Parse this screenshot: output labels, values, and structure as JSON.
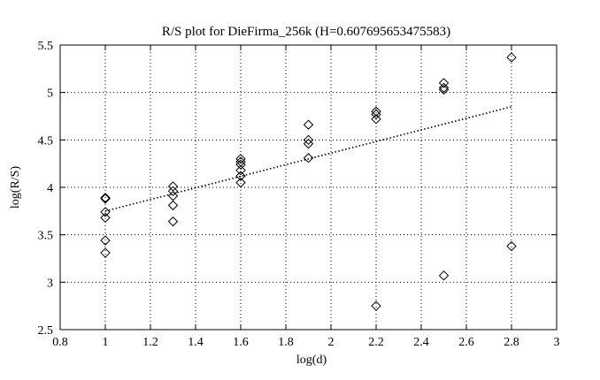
{
  "chart_data": {
    "type": "scatter",
    "title": "R/S plot for DieFirma_256k (H=0.607695653475583)",
    "xlabel": "log(d)",
    "ylabel": "log(R/S)",
    "xlim": [
      0.8,
      3
    ],
    "ylim": [
      2.5,
      5.5
    ],
    "xticks": [
      "0.8",
      "1",
      "1.2",
      "1.4",
      "1.6",
      "1.8",
      "2",
      "2.2",
      "2.4",
      "2.6",
      "2.8",
      "3"
    ],
    "yticks": [
      "2.5",
      "3",
      "3.5",
      "4",
      "4.5",
      "5",
      "5.5"
    ],
    "grid": true,
    "legend": "none",
    "marker": "diamond",
    "marker_color": "#000000",
    "line_color": "#000000",
    "series": [
      {
        "type": "scatter",
        "points": [
          {
            "x": 1.0,
            "y": 3.89
          },
          {
            "x": 1.0,
            "y": 3.88
          },
          {
            "x": 1.0,
            "y": 3.74
          },
          {
            "x": 1.0,
            "y": 3.68
          },
          {
            "x": 1.0,
            "y": 3.44
          },
          {
            "x": 1.0,
            "y": 3.31
          },
          {
            "x": 1.3,
            "y": 4.01
          },
          {
            "x": 1.3,
            "y": 3.96
          },
          {
            "x": 1.3,
            "y": 3.91
          },
          {
            "x": 1.3,
            "y": 3.81
          },
          {
            "x": 1.3,
            "y": 3.64
          },
          {
            "x": 1.6,
            "y": 4.3
          },
          {
            "x": 1.6,
            "y": 4.27
          },
          {
            "x": 1.6,
            "y": 4.24
          },
          {
            "x": 1.6,
            "y": 4.18
          },
          {
            "x": 1.6,
            "y": 4.12
          },
          {
            "x": 1.6,
            "y": 4.05
          },
          {
            "x": 1.9,
            "y": 4.66
          },
          {
            "x": 1.9,
            "y": 4.5
          },
          {
            "x": 1.9,
            "y": 4.46
          },
          {
            "x": 1.9,
            "y": 4.31
          },
          {
            "x": 2.2,
            "y": 4.8
          },
          {
            "x": 2.2,
            "y": 4.77
          },
          {
            "x": 2.2,
            "y": 4.72
          },
          {
            "x": 2.2,
            "y": 2.75
          },
          {
            "x": 2.5,
            "y": 5.1
          },
          {
            "x": 2.5,
            "y": 5.05
          },
          {
            "x": 2.5,
            "y": 5.03
          },
          {
            "x": 2.5,
            "y": 3.07
          },
          {
            "x": 2.8,
            "y": 5.37
          },
          {
            "x": 2.8,
            "y": 3.38
          }
        ]
      },
      {
        "type": "line",
        "style": "dotted",
        "points": [
          {
            "x": 1.0,
            "y": 3.75
          },
          {
            "x": 2.8,
            "y": 4.85
          }
        ]
      }
    ]
  }
}
